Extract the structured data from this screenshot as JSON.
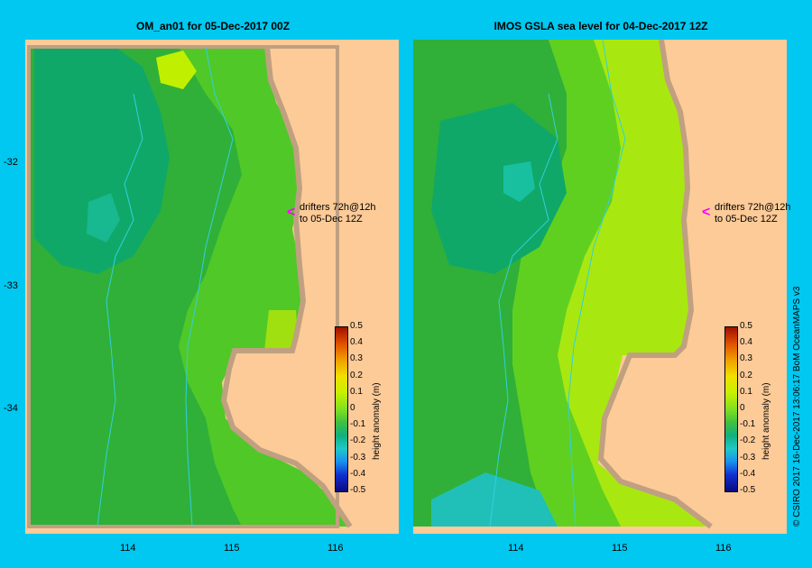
{
  "left_panel": {
    "title": "OM_an01  for 05-Dec-2017 00Z",
    "annotation_line1": "drifters 72h@12h",
    "annotation_line2": "to 05-Dec 12Z",
    "arrow": "<"
  },
  "right_panel": {
    "title": "IMOS GSLA sea level  for 04-Dec-2017 12Z",
    "annotation_line1": "drifters 72h@12h",
    "annotation_line2": "to 05-Dec 12Z",
    "arrow": "<"
  },
  "axes": {
    "y_ticks": [
      "-32",
      "-33",
      "-34"
    ],
    "x_ticks": [
      "114",
      "115",
      "116"
    ]
  },
  "colorbar": {
    "label": "height anomaly (m)",
    "ticks": [
      "0.5",
      "0.4",
      "0.3",
      "0.2",
      "0.1",
      "0",
      "-0.1",
      "-0.2",
      "-0.3",
      "-0.4",
      "-0.5"
    ],
    "range": [
      -0.5,
      0.5
    ],
    "colors": [
      "#0a0a80",
      "#1030d0",
      "#1890f0",
      "#20c8c8",
      "#10b080",
      "#40c040",
      "#80e020",
      "#c8f000",
      "#f0e000",
      "#f0a000",
      "#e05000",
      "#a01000"
    ]
  },
  "credit": "© CSIRO 2017   16-Dec-2017 13:06:17 BoM OceanMAPS v3",
  "colors": {
    "background": "#00c8f0",
    "land": "#fdcb98",
    "coast": "#c0a080",
    "drifter": "#ff00ff"
  }
}
